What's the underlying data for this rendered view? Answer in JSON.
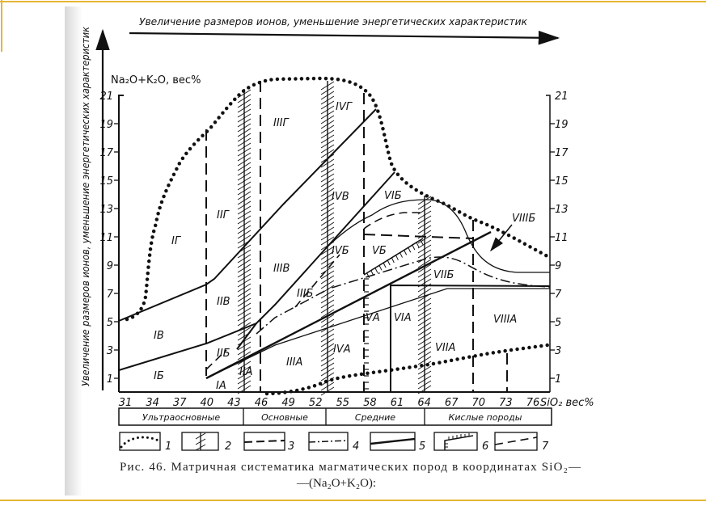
{
  "top_arrow_label": "Увеличение размеров ионов, уменьшение энергетических характеристик",
  "left_arrow_label": "Увеличение размеров ионов, уменьшение энергетических характеристик",
  "y_axis_label": "Na₂O+K₂O, вес%",
  "x_axis_label": "SiO₂ вес%",
  "y_ticks": [
    "1",
    "3",
    "5",
    "7",
    "9",
    "11",
    "13",
    "15",
    "17",
    "19",
    "21"
  ],
  "x_ticks": [
    "31",
    "34",
    "37",
    "40",
    "43",
    "46",
    "49",
    "52",
    "55",
    "58",
    "61",
    "64",
    "67",
    "70",
    "73",
    "76"
  ],
  "rock_groups": [
    "Ультраосновные",
    "Основные",
    "Средние",
    "Кислые породы"
  ],
  "fields": [
    "IГ",
    "IIГ",
    "IIIГ",
    "IVГ",
    "IВ",
    "IIВ",
    "IIIВ",
    "IVВ",
    "IБ",
    "IIБ",
    "IIIБ",
    "IVБ",
    "VБ",
    "VIБ",
    "VIIБ",
    "VIIIБ",
    "IА",
    "IIА",
    "IIIА",
    "IVА",
    "VА",
    "VIА",
    "VIIА",
    "VIIIА"
  ],
  "legend": [
    "1",
    "2",
    "3",
    "4",
    "5",
    "6",
    "7"
  ],
  "caption": {
    "line1": "Рис. 46. Матричная систематика магматических пород в координатах SiO₂—",
    "line2": "—(Na₂O+K₂O):"
  },
  "colors": {
    "frame": "#e6b534",
    "ink": "#111111"
  }
}
